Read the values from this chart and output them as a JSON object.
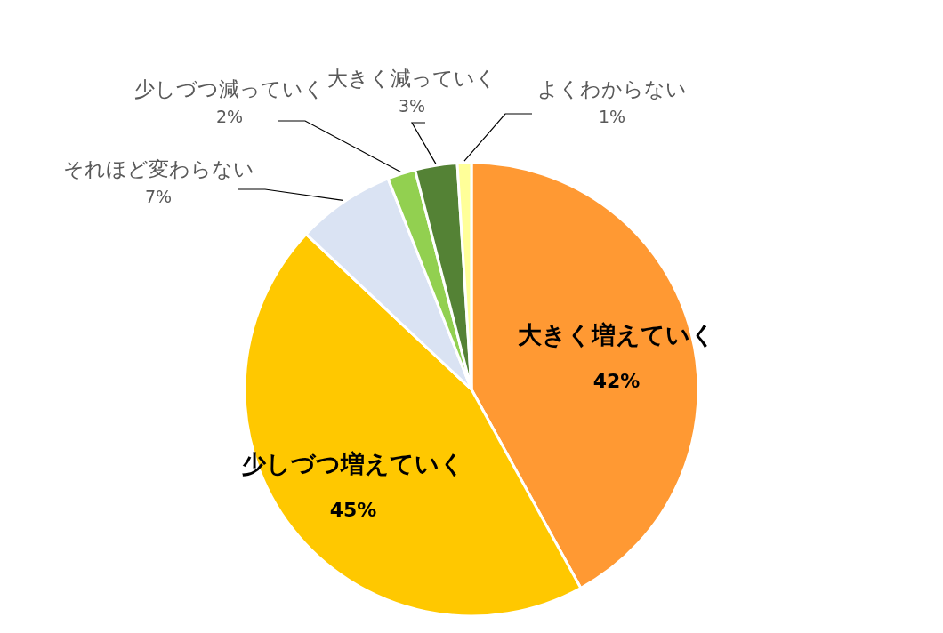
{
  "chart_data": {
    "type": "pie",
    "categories": [
      "大きく増えていく",
      "少しづつ増えていく",
      "それほど変わらない",
      "少しづつ減っていく",
      "大きく減っていく",
      "よくわからない"
    ],
    "values": [
      42,
      45,
      7,
      2,
      3,
      1
    ],
    "colors": [
      "#ff9933",
      "#ffc800",
      "#dae3f3",
      "#92d050",
      "#548235",
      "#ffff99"
    ],
    "value_labels": [
      "42%",
      "45%",
      "7%",
      "2%",
      "3%",
      "1%"
    ]
  }
}
